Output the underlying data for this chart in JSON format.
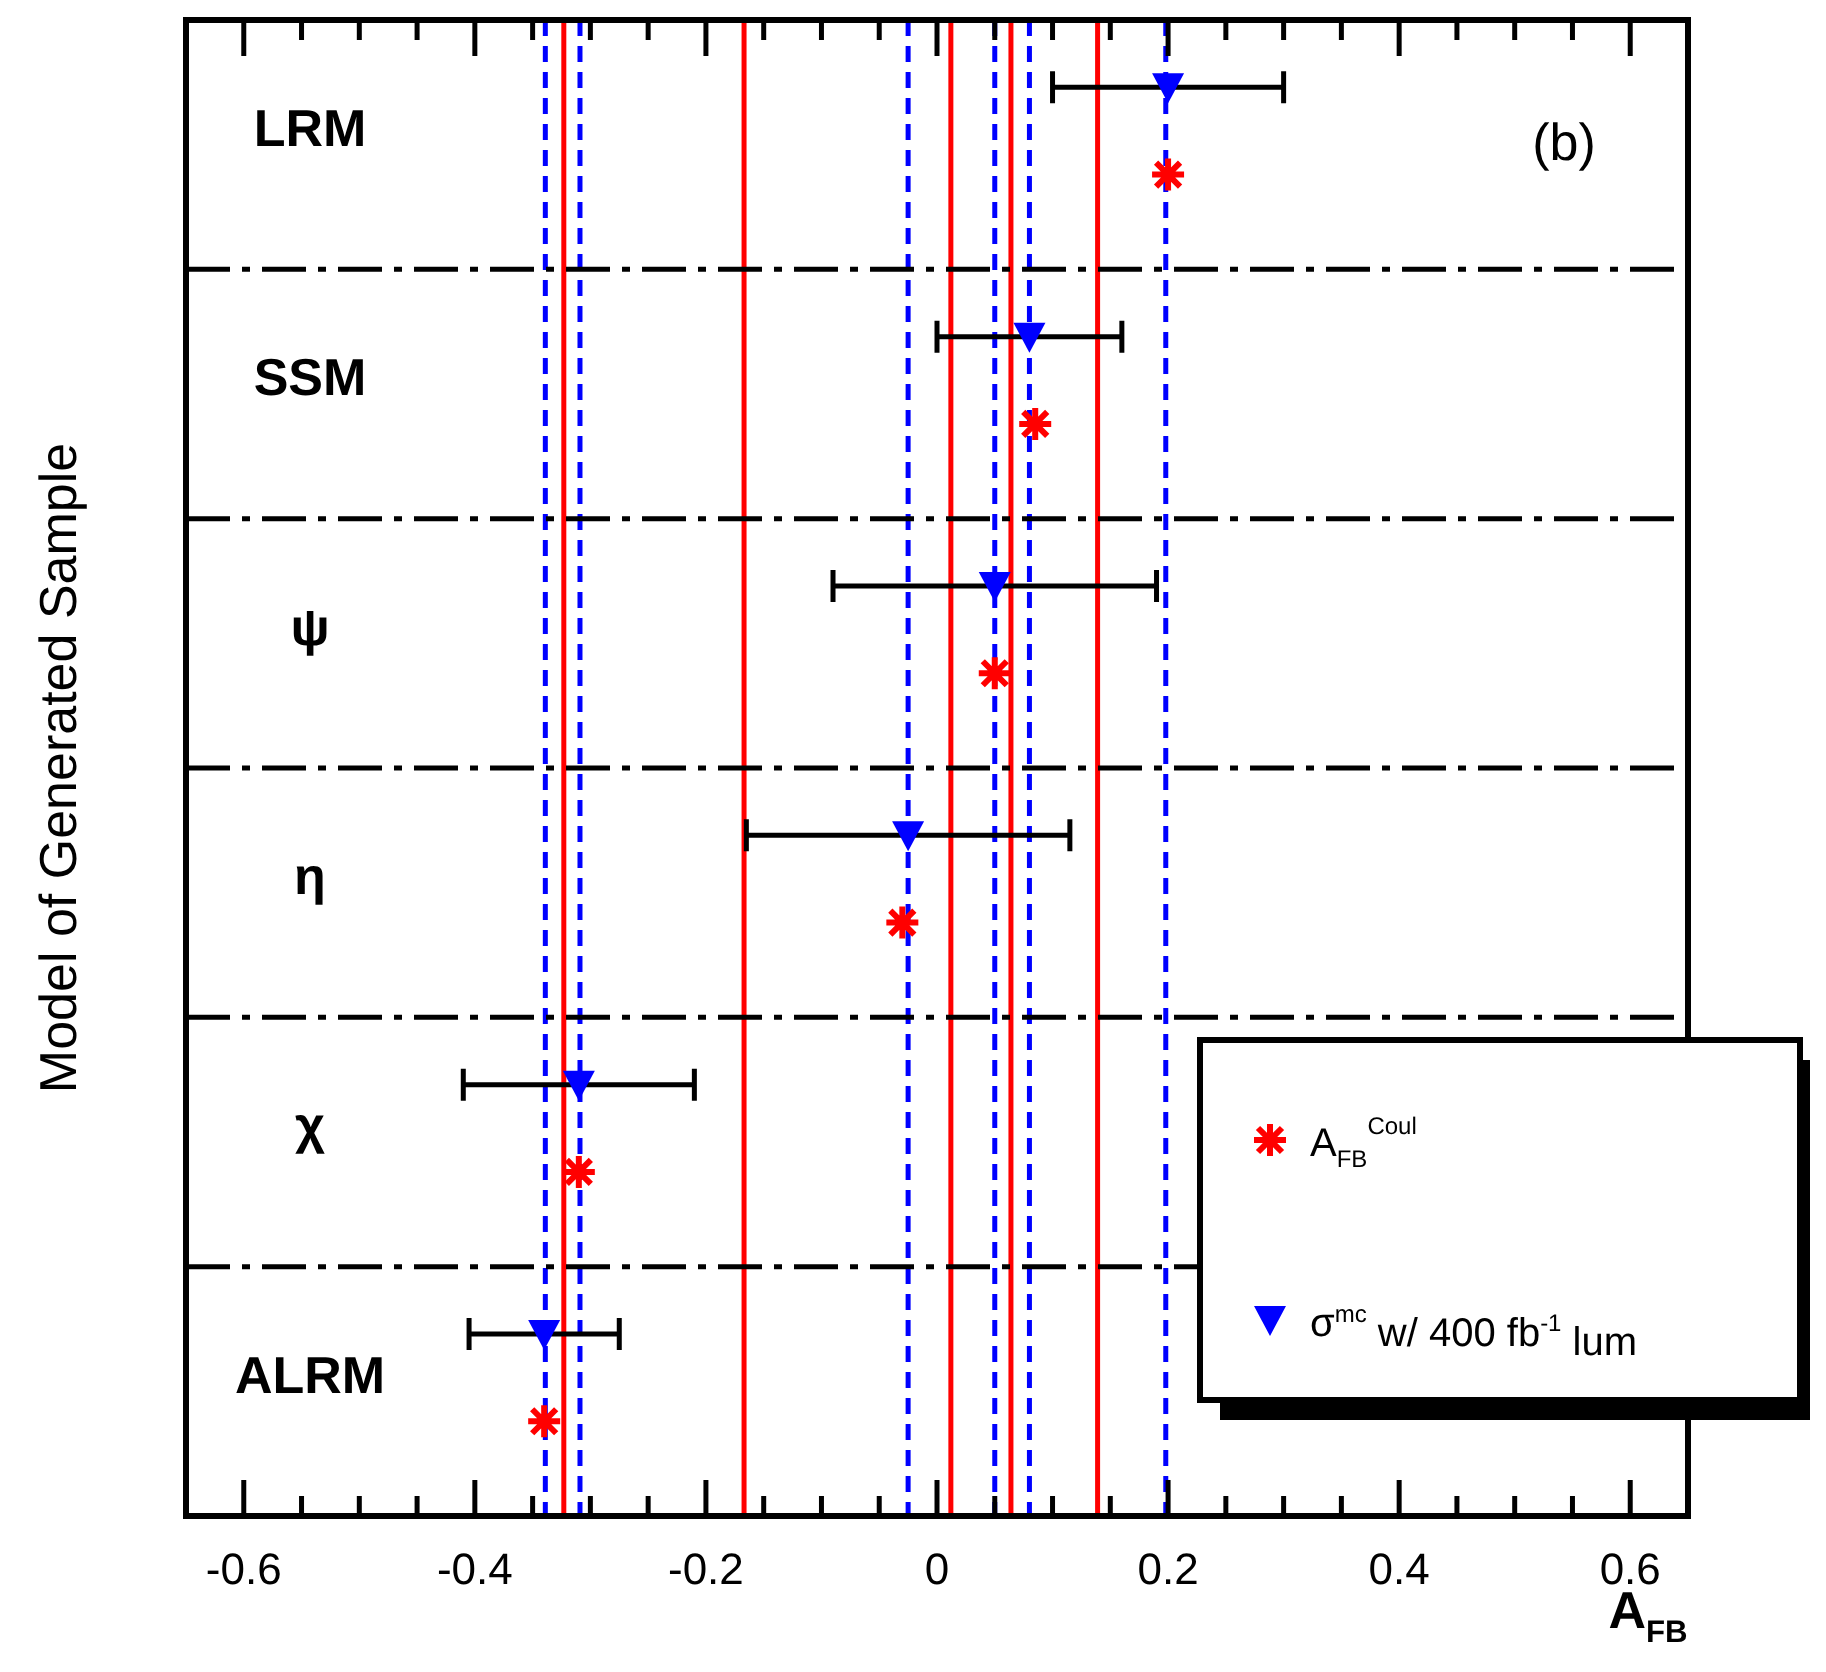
{
  "chart_data": {
    "type": "scatter",
    "orientation": "horizontal",
    "xlabel": "A$_{FB}$",
    "ylabel": "Model of Generated Sample",
    "annotations": [
      "(b)"
    ],
    "categories": [
      "LRM",
      "SSM",
      "ψ",
      "η",
      "χ",
      "ALRM"
    ],
    "xlim": [
      -0.65,
      0.65
    ],
    "xticks": [
      -0.6,
      {
        "value": -0.55,
        "label": null
      },
      {
        "value": -0.5,
        "label": null
      },
      {
        "value": -0.45,
        "label": null
      },
      -0.4,
      {
        "value": -0.35,
        "label": null
      },
      {
        "value": -0.3,
        "label": null
      },
      {
        "value": -0.25,
        "label": null
      },
      -0.2,
      {
        "value": -0.15,
        "label": null
      },
      {
        "value": -0.1,
        "label": null
      },
      {
        "value": -0.05,
        "label": null
      },
      0,
      {
        "value": 0.05,
        "label": null
      },
      {
        "value": 0.1,
        "label": null
      },
      {
        "value": 0.15,
        "label": null
      },
      0.2,
      {
        "value": 0.25,
        "label": null
      },
      {
        "value": 0.3,
        "label": null
      },
      {
        "value": 0.35,
        "label": null
      },
      0.4,
      {
        "value": 0.45,
        "label": null
      },
      {
        "value": 0.5,
        "label": null
      },
      {
        "value": 0.55,
        "label": null
      },
      0.6
    ],
    "grid": "y",
    "legend": "bottom right",
    "series": [
      {
        "name": "A$_{FB}$$^{Coul}$",
        "color": "#ff0000",
        "marker": "cross",
        "values": [
          0.2,
          0.085,
          0.05,
          -0.03,
          -0.31,
          -0.34
        ]
      },
      {
        "name": "σ$^{mc}$ w/ 400 fb$^{-1}$ lum",
        "color": "#0000ff",
        "marker": "triangle",
        "values": [
          0.2,
          0.08,
          0.05,
          -0.025,
          -0.31,
          -0.34
        ],
        "errors": [
          0.1,
          0.08,
          0.14,
          0.14,
          0.1,
          0.065
        ]
      }
    ],
    "ref_lines": [
      {
        "axis": "x",
        "value": -0.323,
        "color": "#ff0000",
        "line_style": "solid"
      },
      {
        "axis": "x",
        "value": -0.167,
        "color": "#ff0000",
        "line_style": "solid"
      },
      {
        "axis": "x",
        "value": 0.012,
        "color": "#ff0000",
        "line_style": "solid"
      },
      {
        "axis": "x",
        "value": 0.064,
        "color": "#ff0000",
        "line_style": "solid"
      },
      {
        "axis": "x",
        "value": 0.139,
        "color": "#ff0000",
        "line_style": "solid"
      },
      {
        "axis": "x",
        "value": -0.339,
        "color": "#0000ff",
        "line_style": "dashed"
      },
      {
        "axis": "x",
        "value": -0.309,
        "color": "#0000ff",
        "line_style": "dashed"
      },
      {
        "axis": "x",
        "value": -0.025,
        "color": "#0000ff",
        "line_style": "dashed"
      },
      {
        "axis": "x",
        "value": 0.05,
        "color": "#0000ff",
        "line_style": "dashed"
      },
      {
        "axis": "x",
        "value": 0.08,
        "color": "#0000ff",
        "line_style": "dashed"
      },
      {
        "axis": "x",
        "value": 0.198,
        "color": "#0000ff",
        "line_style": "dashed"
      }
    ]
  }
}
